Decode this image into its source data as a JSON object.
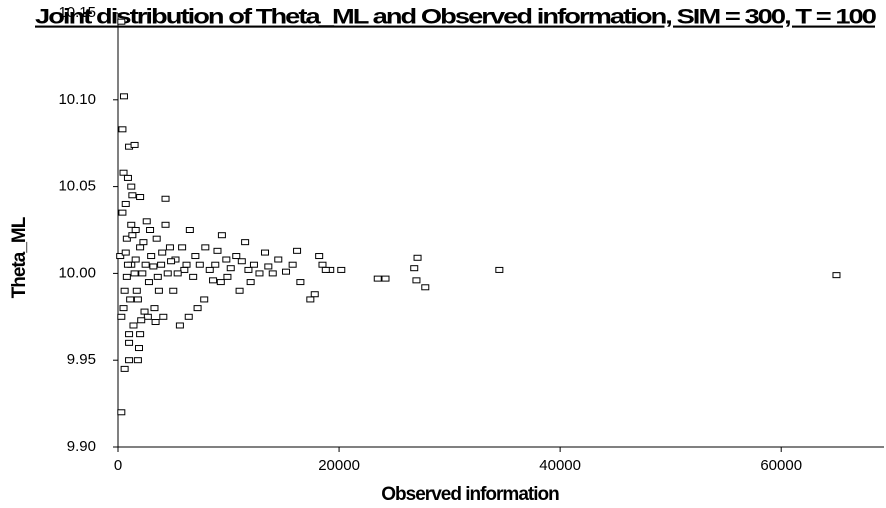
{
  "chart_data": {
    "type": "scatter",
    "title": "Joint distribution of Theta_ML and Observed information, SIM = 300, T = 100",
    "x_label": "Observed information",
    "y_label": "Theta_ML",
    "xlim": [
      0,
      69300
    ],
    "ylim": [
      9.9,
      10.15
    ],
    "xticks": [
      0,
      20000,
      40000,
      60000
    ],
    "yticks": [
      {
        "value": 9.9,
        "label": "9.90"
      },
      9.95,
      {
        "value": 10,
        "label": "10.00"
      },
      10.05,
      {
        "value": 10.1,
        "label": "10.10"
      },
      10.15
    ],
    "color": "#000000",
    "grid": false,
    "x": [
      300,
      540,
      400,
      1000,
      1500,
      500,
      900,
      1200,
      1300,
      2000,
      4300,
      700,
      65000,
      34500,
      27800,
      27100,
      26800,
      27000,
      24200,
      23500,
      20200,
      19200,
      18500,
      18200,
      18800,
      17800,
      17400,
      16200,
      16500,
      15800,
      15200,
      14500,
      14000,
      13600,
      13300,
      12800,
      12300,
      11800,
      11500,
      11000,
      10700,
      10200,
      9800,
      9400,
      9300,
      9000,
      8600,
      8300,
      7900,
      7800,
      7400,
      7000,
      6800,
      6500,
      6400,
      6000,
      5800,
      5600,
      5200,
      5000,
      4700,
      4500,
      4300,
      4100,
      3900,
      3700,
      3500,
      3300,
      3000,
      2800,
      2600,
      2400,
      2200,
      2000,
      1800,
      1600,
      1400,
      1200,
      1000,
      800,
      600,
      400,
      300,
      200,
      600,
      1000,
      300,
      1800,
      1900,
      1000,
      2500,
      2700,
      1500,
      900,
      700,
      1100,
      1300,
      1700,
      2300,
      2100,
      3200,
      3600,
      4800,
      5400,
      6200,
      7200,
      8800,
      9900,
      11200,
      12000,
      500,
      800,
      1200,
      1600,
      2000,
      2900,
      3400,
      4000
    ],
    "values": [
      10.145,
      10.102,
      10.083,
      10.073,
      10.074,
      10.058,
      10.055,
      10.05,
      10.045,
      10.044,
      10.043,
      10.04,
      9.999,
      10.002,
      9.992,
      10.009,
      10.003,
      9.996,
      9.997,
      9.997,
      10.002,
      10.002,
      10.005,
      10.01,
      10.002,
      9.988,
      9.985,
      10.013,
      9.995,
      10.005,
      10.001,
      10.008,
      10.0,
      10.004,
      10.012,
      10.0,
      10.005,
      10.002,
      10.018,
      9.99,
      10.01,
      10.003,
      10.008,
      10.022,
      9.995,
      10.013,
      9.996,
      10.002,
      10.015,
      9.985,
      10.005,
      10.01,
      9.998,
      10.025,
      9.975,
      10.002,
      10.015,
      9.97,
      10.008,
      9.99,
      10.015,
      10.0,
      10.028,
      9.975,
      10.005,
      9.99,
      10.02,
      9.98,
      10.01,
      9.995,
      10.03,
      9.978,
      10.0,
      10.015,
      9.985,
      10.025,
      9.97,
      10.005,
      9.96,
      10.02,
      9.99,
      10.035,
      9.975,
      10.01,
      9.945,
      9.95,
      9.92,
      9.95,
      9.957,
      9.965,
      10.005,
      9.975,
      10.0,
      10.005,
      10.012,
      9.985,
      10.022,
      9.99,
      10.018,
      9.973,
      10.004,
      9.998,
      10.007,
      10.0,
      10.005,
      9.98,
      10.005,
      9.998,
      10.007,
      9.995,
      9.98,
      9.998,
      10.028,
      10.008,
      9.965,
      10.025,
      9.972,
      10.012
    ]
  }
}
